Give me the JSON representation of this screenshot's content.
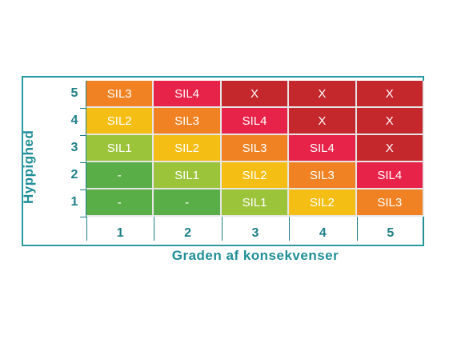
{
  "axis": {
    "y_label": "Hyppighed",
    "x_label": "Graden af konsekvenser",
    "rows": [
      "5",
      "4",
      "3",
      "2",
      "1"
    ],
    "cols": [
      "1",
      "2",
      "3",
      "4",
      "5"
    ]
  },
  "matrix": [
    [
      "SIL3",
      "SIL4",
      "X",
      "X",
      "X"
    ],
    [
      "SIL2",
      "SIL3",
      "SIL4",
      "X",
      "X"
    ],
    [
      "SIL1",
      "SIL2",
      "SIL3",
      "SIL4",
      "X"
    ],
    [
      "-",
      "SIL1",
      "SIL2",
      "SIL3",
      "SIL4"
    ],
    [
      "-",
      "-",
      "SIL1",
      "SIL2",
      "SIL3"
    ]
  ],
  "colors": {
    "-": "#5aae48",
    "SIL1": "#9cc43b",
    "SIL2": "#f5be14",
    "SIL3": "#f08224",
    "SIL4": "#e8234a",
    "X": "#c4272c"
  }
}
